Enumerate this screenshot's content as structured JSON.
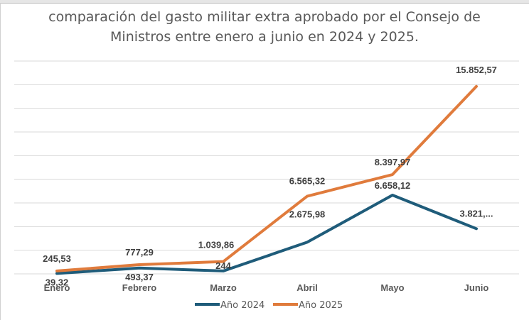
{
  "title_line1": "comparación del gasto militar extra aprobado por el Consejo de",
  "title_line2": "Ministros entre enero a junio en 2024 y 2025.",
  "chart_data": {
    "type": "line",
    "title": "comparación del gasto militar extra aprobado por el Consejo de Ministros entre enero a junio en 2024 y 2025.",
    "xlabel": "",
    "ylabel": "",
    "categories": [
      "Enero",
      "Febrero",
      "Marzo",
      "Abril",
      "Mayo",
      "Junio"
    ],
    "ylim": [
      0,
      18000
    ],
    "y_gridline_step": 2000,
    "grid": true,
    "y_axis_labels_shown": false,
    "legend_position": "bottom",
    "series": [
      {
        "name": "Año 2024",
        "color": "#1f5c7a",
        "values": [
          39.32,
          493.37,
          244,
          2675.98,
          6658.12,
          3821
        ],
        "labels": [
          "39,32",
          "493,37",
          "244",
          "2.675,98",
          "6.658,12",
          "3.821,..."
        ]
      },
      {
        "name": "Año 2025",
        "color": "#e07b3c",
        "values": [
          245.53,
          777.29,
          1039.86,
          6565.32,
          8397.97,
          15852.57
        ],
        "labels": [
          "245,53",
          "777,29",
          "1.039,86",
          "6.565,32",
          "8.397,97",
          "15.852,57"
        ]
      }
    ]
  }
}
